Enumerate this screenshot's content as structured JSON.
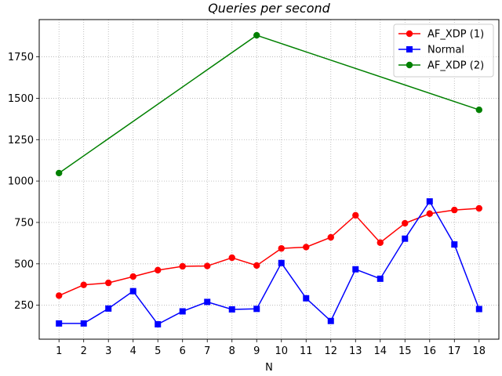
{
  "chart_data": {
    "type": "line",
    "title": "Queries per second",
    "xlabel": "N",
    "ylabel": "",
    "xlim": [
      0.2,
      18.8
    ],
    "ylim": [
      45,
      1975
    ],
    "grid": true,
    "grid_style": "dotted",
    "legend_position": "top-right",
    "x_ticks": [
      1,
      2,
      3,
      4,
      5,
      6,
      7,
      8,
      9,
      10,
      11,
      12,
      13,
      14,
      15,
      16,
      17,
      18
    ],
    "y_ticks": [
      250,
      500,
      750,
      1000,
      1250,
      1500,
      1750
    ],
    "series": [
      {
        "name": "AF_XDP (1)",
        "color": "#ff0000",
        "marker": "circle",
        "x": [
          1,
          2,
          3,
          4,
          5,
          6,
          7,
          8,
          9,
          10,
          11,
          12,
          13,
          14,
          15,
          16,
          17,
          18
        ],
        "y": [
          308,
          373,
          385,
          423,
          462,
          485,
          487,
          537,
          490,
          593,
          601,
          660,
          793,
          628,
          745,
          803,
          825,
          835
        ]
      },
      {
        "name": "Normal",
        "color": "#0000ff",
        "marker": "square",
        "x": [
          1,
          2,
          3,
          4,
          5,
          6,
          7,
          8,
          9,
          10,
          11,
          12,
          13,
          14,
          15,
          16,
          17,
          18
        ],
        "y": [
          140,
          140,
          230,
          335,
          135,
          213,
          270,
          225,
          228,
          505,
          292,
          155,
          467,
          410,
          652,
          877,
          617,
          227
        ]
      },
      {
        "name": "AF_XDP (2)",
        "color": "#008000",
        "marker": "circle",
        "x": [
          1,
          9,
          18
        ],
        "y": [
          1048,
          1880,
          1430
        ]
      }
    ]
  }
}
